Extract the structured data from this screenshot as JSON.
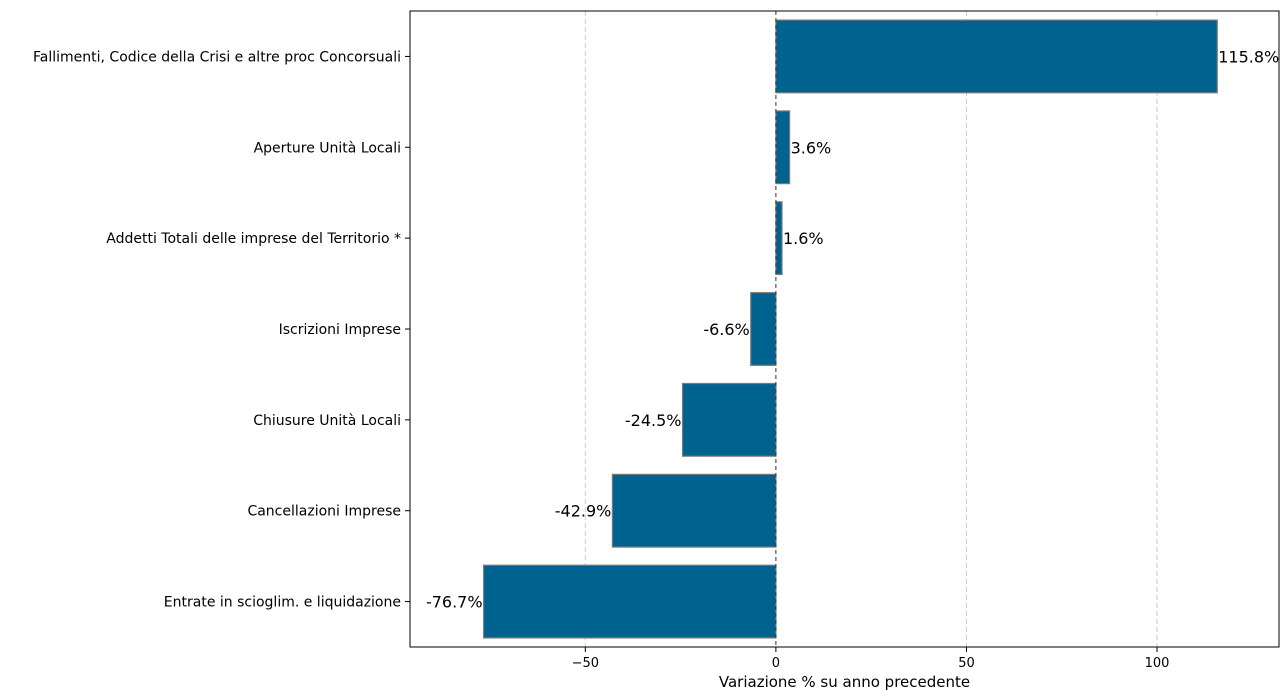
{
  "chart_data": {
    "type": "bar",
    "orientation": "horizontal",
    "categories": [
      "Fallimenti, Codice della Crisi e altre proc Concorsuali",
      "Aperture Unità Locali",
      "Addetti Totali delle imprese del Territorio *",
      "Iscrizioni Imprese",
      "Chiusure Unità Locali",
      "Cancellazioni Imprese",
      "Entrate in scioglim. e liquidazione"
    ],
    "values": [
      115.8,
      3.6,
      1.6,
      -6.6,
      -24.5,
      -42.9,
      -76.7
    ],
    "value_labels": [
      "115.8%",
      "3.6%",
      "1.6%",
      "-6.6%",
      "-24.5%",
      "-42.9%",
      "-76.7%"
    ],
    "title": "",
    "xlabel": "Variazione % su anno precedente",
    "ylabel": "",
    "xlim": [
      -96,
      132
    ],
    "xticks": [
      -50,
      0,
      50,
      100
    ],
    "xtick_labels": [
      "−50",
      "0",
      "50",
      "100"
    ],
    "grid": "x, dashed",
    "zero_line": "dashed",
    "bar_color": "#00628f",
    "bar_edge_color": "#7a7a7a"
  }
}
